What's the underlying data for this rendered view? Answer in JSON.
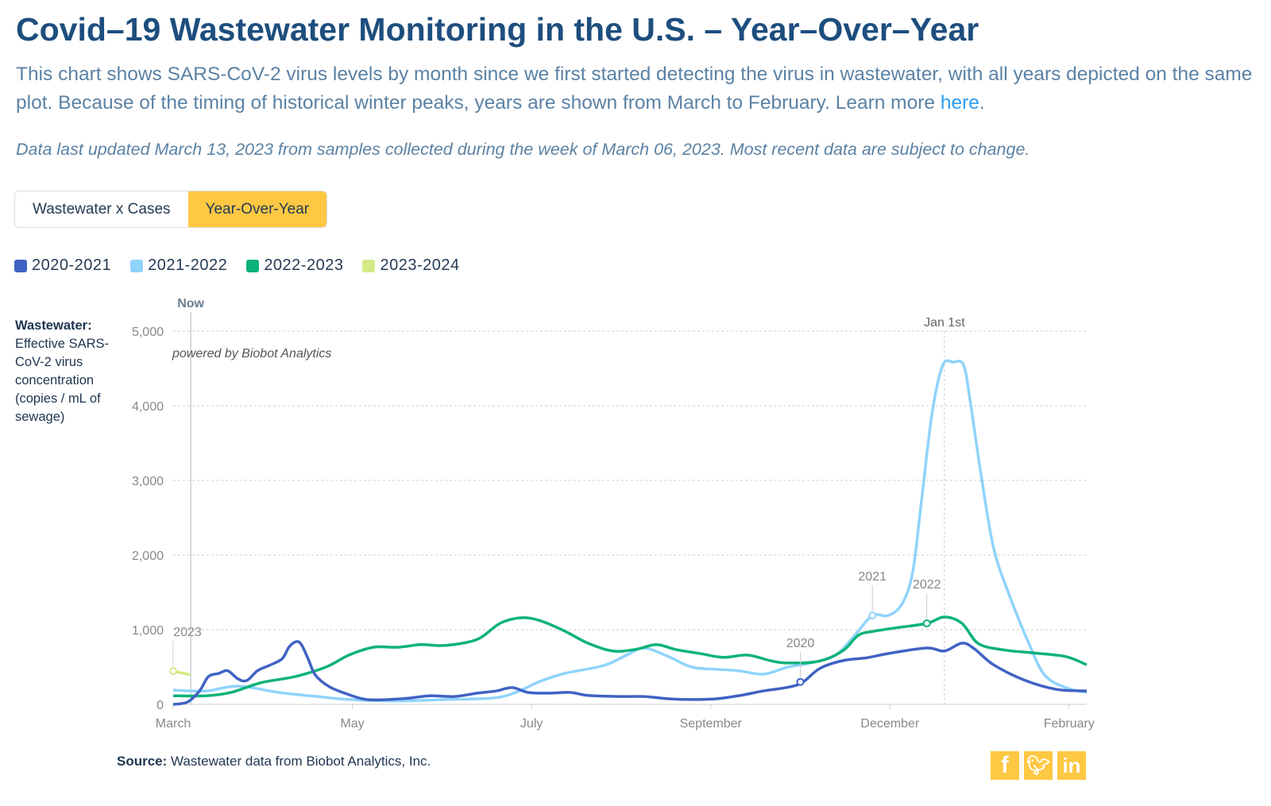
{
  "header": {
    "title": "Covid–19 Wastewater Monitoring in the U.S. – Year–Over–Year",
    "description": "This chart shows SARS-CoV-2 virus levels by month since we first started detecting the virus in wastewater, with all years depicted on the same plot. Because of the timing of historical winter peaks, years are shown from March to February. Learn more ",
    "link": "here",
    "period": ".",
    "updated": "Data last updated March 13, 2023 from samples collected during the week of March 06, 2023. Most recent data are subject to change."
  },
  "tabs": [
    {
      "label": "Wastewater x Cases",
      "active": false
    },
    {
      "label": "Year-Over-Year",
      "active": true
    }
  ],
  "colors": {
    "accent": "#fec843",
    "title": "#1d4e7e"
  },
  "footer": {
    "source_label": "Source:",
    "source_text": " Wastewater data from Biobot Analytics, Inc.",
    "social": [
      "facebook-icon",
      "twitter-icon",
      "linkedin-icon"
    ]
  },
  "chart_data": {
    "type": "line",
    "ylabel_bold": "Wastewater:",
    "ylabel": "Effective SARS-CoV-2 virus concentration (copies / mL of sewage)",
    "credit": "powered by Biobot Analytics",
    "x_unit": "weeks since start of March",
    "xlim": [
      0,
      52
    ],
    "ylim": [
      0,
      5000
    ],
    "yticks": [
      0,
      1000,
      2000,
      3000,
      4000,
      5000
    ],
    "ytick_labels": [
      "0",
      "1,000",
      "2,000",
      "3,000",
      "4,000",
      "5,000"
    ],
    "xticks": [
      {
        "x": 0,
        "label": "March"
      },
      {
        "x": 10.2,
        "label": "May"
      },
      {
        "x": 20.4,
        "label": "July"
      },
      {
        "x": 30.6,
        "label": "September"
      },
      {
        "x": 40.8,
        "label": "December"
      },
      {
        "x": 51,
        "label": "February"
      }
    ],
    "grid": true,
    "legend_placement": "top-left",
    "markers": [
      {
        "x": 1.0,
        "label": "Now"
      },
      {
        "x": 43.9,
        "label": "Jan 1st"
      }
    ],
    "series": [
      {
        "name": "2020-2021",
        "color": "#3f62c4",
        "points": [
          [
            0,
            0
          ],
          [
            0.8,
            30
          ],
          [
            1.5,
            180
          ],
          [
            2.0,
            370
          ],
          [
            2.6,
            415
          ],
          [
            3.1,
            450
          ],
          [
            3.7,
            340
          ],
          [
            4.2,
            320
          ],
          [
            4.8,
            450
          ],
          [
            5.5,
            525
          ],
          [
            6.2,
            610
          ],
          [
            6.6,
            770
          ],
          [
            7.0,
            840
          ],
          [
            7.3,
            800
          ],
          [
            7.7,
            600
          ],
          [
            8.1,
            390
          ],
          [
            8.9,
            235
          ],
          [
            10.0,
            130
          ],
          [
            11.0,
            65
          ],
          [
            12.3,
            65
          ],
          [
            13.5,
            85
          ],
          [
            14.6,
            115
          ],
          [
            16.0,
            105
          ],
          [
            17.3,
            150
          ],
          [
            18.4,
            180
          ],
          [
            19.3,
            225
          ],
          [
            20.2,
            160
          ],
          [
            21.4,
            150
          ],
          [
            22.6,
            160
          ],
          [
            23.6,
            120
          ],
          [
            25.5,
            105
          ],
          [
            26.8,
            105
          ],
          [
            28.2,
            75
          ],
          [
            29.5,
            65
          ],
          [
            30.9,
            75
          ],
          [
            32.3,
            120
          ],
          [
            33.6,
            180
          ],
          [
            34.9,
            225
          ],
          [
            35.8,
            290
          ],
          [
            36.8,
            480
          ],
          [
            38.1,
            585
          ],
          [
            39.5,
            625
          ],
          [
            40.8,
            685
          ],
          [
            42.9,
            755
          ],
          [
            43.9,
            715
          ],
          [
            44.9,
            820
          ],
          [
            45.6,
            745
          ],
          [
            46.7,
            530
          ],
          [
            48.5,
            320
          ],
          [
            50.3,
            200
          ],
          [
            52.0,
            180
          ]
        ]
      },
      {
        "name": "2021-2022",
        "color": "#8fd3fb",
        "points": [
          [
            0,
            190
          ],
          [
            1.9,
            180
          ],
          [
            3.7,
            245
          ],
          [
            6.0,
            160
          ],
          [
            8.2,
            105
          ],
          [
            10.0,
            65
          ],
          [
            12.8,
            45
          ],
          [
            15.5,
            65
          ],
          [
            18.2,
            85
          ],
          [
            19.5,
            160
          ],
          [
            20.9,
            310
          ],
          [
            22.3,
            415
          ],
          [
            24.5,
            520
          ],
          [
            25.9,
            670
          ],
          [
            26.8,
            755
          ],
          [
            28.1,
            650
          ],
          [
            29.5,
            500
          ],
          [
            30.9,
            470
          ],
          [
            32.2,
            450
          ],
          [
            33.6,
            405
          ],
          [
            35.0,
            500
          ],
          [
            36.3,
            555
          ],
          [
            37.7,
            660
          ],
          [
            38.8,
            925
          ],
          [
            39.8,
            1190
          ],
          [
            40.7,
            1190
          ],
          [
            41.5,
            1350
          ],
          [
            42.1,
            1780
          ],
          [
            42.6,
            2735
          ],
          [
            43.2,
            3900
          ],
          [
            43.8,
            4540
          ],
          [
            44.4,
            4585
          ],
          [
            45.0,
            4540
          ],
          [
            45.4,
            4010
          ],
          [
            46.0,
            3055
          ],
          [
            46.7,
            2095
          ],
          [
            47.6,
            1460
          ],
          [
            48.7,
            820
          ],
          [
            49.6,
            395
          ],
          [
            50.8,
            225
          ],
          [
            52,
            160
          ]
        ]
      },
      {
        "name": "2022-2023",
        "color": "#0db27a",
        "points": [
          [
            0,
            115
          ],
          [
            1.9,
            115
          ],
          [
            3.3,
            160
          ],
          [
            5.0,
            290
          ],
          [
            6.9,
            370
          ],
          [
            8.7,
            500
          ],
          [
            10.0,
            660
          ],
          [
            11.4,
            765
          ],
          [
            12.8,
            765
          ],
          [
            14.1,
            800
          ],
          [
            15.5,
            790
          ],
          [
            17.3,
            870
          ],
          [
            18.6,
            1085
          ],
          [
            19.8,
            1160
          ],
          [
            20.9,
            1120
          ],
          [
            22.3,
            980
          ],
          [
            23.6,
            820
          ],
          [
            25.0,
            715
          ],
          [
            26.3,
            735
          ],
          [
            27.5,
            800
          ],
          [
            28.6,
            735
          ],
          [
            30.0,
            680
          ],
          [
            31.3,
            630
          ],
          [
            32.7,
            660
          ],
          [
            34.0,
            585
          ],
          [
            34.9,
            555
          ],
          [
            36.7,
            575
          ],
          [
            38.1,
            715
          ],
          [
            39.0,
            925
          ],
          [
            39.9,
            980
          ],
          [
            41.3,
            1030
          ],
          [
            42.9,
            1085
          ],
          [
            43.9,
            1170
          ],
          [
            44.9,
            1085
          ],
          [
            45.8,
            820
          ],
          [
            47.1,
            735
          ],
          [
            48.9,
            690
          ],
          [
            50.8,
            640
          ],
          [
            52,
            530
          ]
        ]
      },
      {
        "name": "2023-2024",
        "color": "#d4ea86",
        "points": [
          [
            0,
            445
          ],
          [
            1.0,
            395
          ]
        ]
      }
    ],
    "annotations": [
      {
        "label": "2023",
        "x": 0,
        "y": 445,
        "series": 3
      },
      {
        "label": "2020",
        "x": 35.7,
        "y": 300,
        "series": 0
      },
      {
        "label": "2021",
        "x": 39.8,
        "y": 1190,
        "series": 1
      },
      {
        "label": "2022",
        "x": 42.9,
        "y": 1085,
        "series": 2
      }
    ]
  }
}
